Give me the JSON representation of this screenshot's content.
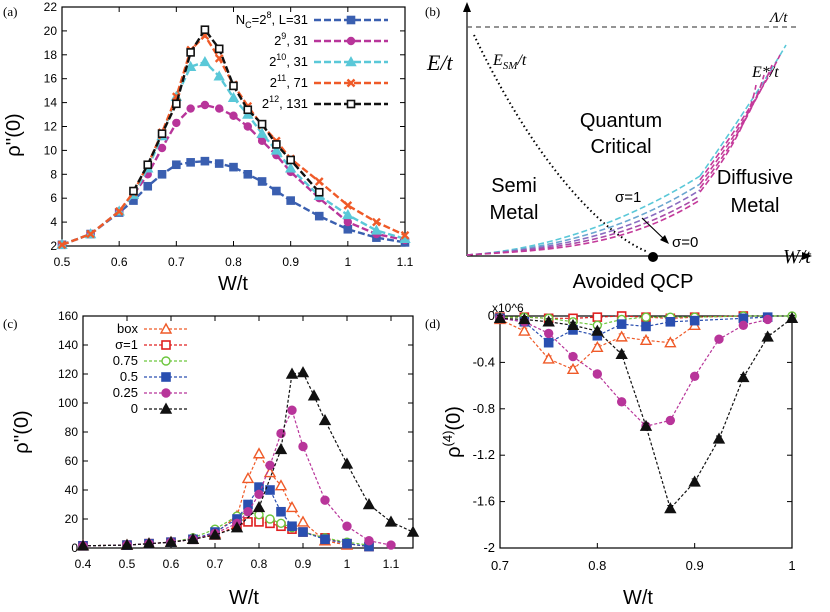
{
  "chart_data": [
    {
      "panel": "(a)",
      "type": "line",
      "xlabel": "W/t",
      "ylabel": "ρ''(0)",
      "xlim": [
        0.5,
        1.1
      ],
      "ylim": [
        2,
        22
      ],
      "xticks": [
        "0.5",
        "0.6",
        "0.7",
        "0.8",
        "0.9",
        "1",
        "1.1"
      ],
      "yticks": [
        "2",
        "4",
        "6",
        "8",
        "10",
        "12",
        "14",
        "16",
        "18",
        "20",
        "22"
      ],
      "legend_position": "top-right",
      "series": [
        {
          "name": "N_C=2^8, L=31",
          "label_main": "N",
          "label_sub": "C",
          "label_mid": "=2",
          "label_sup": "8",
          "label_tail": ", L=31",
          "color": "#3a5fb0",
          "marker": "square",
          "x": [
            0.5,
            0.55,
            0.6,
            0.625,
            0.65,
            0.675,
            0.7,
            0.725,
            0.75,
            0.775,
            0.8,
            0.825,
            0.85,
            0.875,
            0.9,
            0.95,
            1.0,
            1.05,
            1.1
          ],
          "y": [
            2.1,
            3.0,
            4.8,
            5.8,
            7.0,
            8.0,
            8.8,
            9.0,
            9.1,
            8.9,
            8.6,
            8.0,
            7.4,
            6.6,
            5.8,
            4.5,
            3.4,
            2.7,
            2.3
          ]
        },
        {
          "name": "2^9, 31",
          "label_main": "2",
          "label_sup": "9",
          "label_tail": ", 31",
          "color": "#b8359a",
          "marker": "circle",
          "x": [
            0.5,
            0.55,
            0.6,
            0.625,
            0.65,
            0.675,
            0.7,
            0.725,
            0.75,
            0.775,
            0.8,
            0.825,
            0.85,
            0.875,
            0.9,
            0.95,
            1.0,
            1.05,
            1.1
          ],
          "y": [
            2.1,
            3.0,
            4.9,
            6.3,
            8.0,
            10.2,
            12.3,
            13.5,
            13.8,
            13.5,
            12.9,
            12.0,
            10.8,
            9.6,
            8.2,
            6.0,
            4.0,
            3.0,
            2.5
          ]
        },
        {
          "name": "2^10, 31",
          "label_main": "2",
          "label_sup": "10",
          "label_tail": ", 31",
          "color": "#5ac8d8",
          "marker": "triangle",
          "x": [
            0.5,
            0.55,
            0.6,
            0.625,
            0.65,
            0.675,
            0.7,
            0.725,
            0.75,
            0.775,
            0.8,
            0.825,
            0.85,
            0.875,
            0.9,
            0.95,
            1.0,
            1.05,
            1.1
          ],
          "y": [
            2.1,
            3.0,
            4.9,
            6.3,
            8.5,
            11.2,
            14.5,
            17.0,
            17.4,
            16.2,
            14.4,
            13.0,
            11.4,
            10.0,
            8.5,
            6.2,
            4.6,
            3.3,
            2.6
          ]
        },
        {
          "name": "2^11, 71",
          "label_main": "2",
          "label_sup": "11",
          "label_tail": ", 71",
          "color": "#ef5a28",
          "marker": "x",
          "x": [
            0.5,
            0.55,
            0.6,
            0.625,
            0.65,
            0.675,
            0.7,
            0.725,
            0.75,
            0.775,
            0.8,
            0.825,
            0.85,
            0.875,
            0.9,
            0.95,
            1.0,
            1.05,
            1.1
          ],
          "y": [
            2.1,
            3.0,
            4.9,
            6.5,
            8.8,
            11.5,
            14.5,
            18.4,
            19.6,
            17.7,
            15.5,
            13.7,
            12.1,
            10.8,
            9.3,
            7.4,
            5.4,
            4.0,
            2.9
          ]
        },
        {
          "name": "2^12, 131",
          "label_main": "2",
          "label_sup": "12",
          "label_tail": ", 131",
          "color": "#111111",
          "marker": "square-open",
          "x": [
            0.625,
            0.65,
            0.675,
            0.7,
            0.725,
            0.75,
            0.775,
            0.8,
            0.825,
            0.85,
            0.875,
            0.9,
            0.95
          ],
          "y": [
            6.6,
            8.8,
            11.4,
            13.9,
            18.2,
            20.1,
            18.5,
            15.4,
            13.4,
            12.2,
            10.5,
            9.2,
            6.5
          ]
        }
      ]
    },
    {
      "panel": "(b)",
      "type": "diagram",
      "xlabel": "W/t",
      "ylabel": "E/t",
      "annotations": [
        "Λ/t",
        "E_SM/t",
        "E*/t",
        "Quantum",
        "Critical",
        "Semi",
        "Metal",
        "Diffusive",
        "Metal",
        "σ=1",
        "σ=0",
        "Avoided QCP"
      ],
      "labels": {
        "lambda": "Λ/t",
        "esm_main": "E",
        "esm_sub": "SM",
        "esm_tail": "/t",
        "estar": "E*/t",
        "quantum": "Quantum",
        "critical": "Critical",
        "semi": "Semi",
        "metal": "Metal",
        "diffusive": "Diffusive",
        "metal2": "Metal",
        "sigma1": "σ=1",
        "sigma0": "σ=0",
        "qcp": "Avoided QCP"
      },
      "sigma_values": [
        1,
        0.75,
        0.5,
        0.25,
        0
      ],
      "sigma_colors": [
        "#5ac8d8",
        "#6aa6d0",
        "#8a6cc0",
        "#a84aa8",
        "#c43a9a"
      ]
    },
    {
      "panel": "(c)",
      "type": "line",
      "xlabel": "W/t",
      "ylabel": "ρ''(0)",
      "xlim": [
        0.4,
        1.15
      ],
      "ylim": [
        0,
        160
      ],
      "xticks": [
        "0.4",
        "0.5",
        "0.6",
        "0.7",
        "0.8",
        "0.9",
        "1",
        "1.1"
      ],
      "yticks": [
        "0",
        "20",
        "40",
        "60",
        "80",
        "100",
        "120",
        "140",
        "160"
      ],
      "legend_position": "top-left",
      "series": [
        {
          "name": "box",
          "color": "#ef5a28",
          "marker": "triangle-open",
          "x": [
            0.4,
            0.5,
            0.55,
            0.6,
            0.65,
            0.7,
            0.75,
            0.775,
            0.8,
            0.825,
            0.85,
            0.875,
            0.9,
            0.95,
            1.0
          ],
          "y": [
            1.5,
            2,
            3,
            4,
            6,
            10,
            22,
            48,
            65,
            52,
            43,
            28,
            18,
            5,
            2
          ]
        },
        {
          "name": "σ=1",
          "color": "#e02020",
          "marker": "square-open",
          "x": [
            0.4,
            0.5,
            0.55,
            0.6,
            0.65,
            0.7,
            0.75,
            0.775,
            0.8,
            0.825,
            0.85,
            0.875,
            0.9,
            0.95,
            1.0,
            1.05
          ],
          "y": [
            1.5,
            2,
            3,
            4,
            6,
            9,
            15,
            18,
            18,
            17,
            15,
            13,
            11,
            7,
            3,
            1
          ]
        },
        {
          "name": "0.75",
          "color": "#6cc63c",
          "marker": "circle-open",
          "x": [
            0.4,
            0.5,
            0.55,
            0.6,
            0.65,
            0.7,
            0.75,
            0.775,
            0.8,
            0.825,
            0.85,
            0.875,
            0.9,
            0.95,
            1.0,
            1.05
          ],
          "y": [
            1.5,
            2,
            3,
            4,
            7,
            13,
            22,
            25,
            23,
            20,
            17,
            14,
            11,
            7,
            4,
            2
          ]
        },
        {
          "name": "0.5",
          "color": "#2a4fb0",
          "marker": "square",
          "x": [
            0.4,
            0.5,
            0.55,
            0.6,
            0.65,
            0.7,
            0.75,
            0.775,
            0.8,
            0.825,
            0.85,
            0.875,
            0.9,
            0.95,
            1.0,
            1.05
          ],
          "y": [
            1.5,
            2,
            3,
            4,
            6,
            11,
            20,
            30,
            42,
            40,
            25,
            15,
            11,
            6,
            3,
            1
          ]
        },
        {
          "name": "0.25",
          "color": "#b8359a",
          "marker": "circle",
          "x": [
            0.4,
            0.5,
            0.55,
            0.6,
            0.65,
            0.7,
            0.75,
            0.775,
            0.8,
            0.825,
            0.85,
            0.875,
            0.9,
            0.95,
            1.0,
            1.05,
            1.1
          ],
          "y": [
            1.5,
            2,
            3,
            4,
            6,
            10,
            17,
            25,
            37,
            57,
            79,
            95,
            70,
            33,
            15,
            5,
            2
          ]
        },
        {
          "name": "0",
          "color": "#111111",
          "marker": "triangle",
          "x": [
            0.4,
            0.5,
            0.55,
            0.6,
            0.65,
            0.7,
            0.75,
            0.8,
            0.85,
            0.875,
            0.9,
            0.925,
            0.95,
            1.0,
            1.05,
            1.1,
            1.15
          ],
          "y": [
            1.5,
            2,
            3,
            4,
            6,
            9,
            14,
            28,
            68,
            120,
            121,
            105,
            88,
            58,
            30,
            18,
            11
          ]
        }
      ]
    },
    {
      "panel": "(d)",
      "type": "line",
      "xlabel": "W/t",
      "ylabel": "ρ^(4)(0)",
      "y_multiplier": "x10^6",
      "xlim": [
        0.7,
        1.0
      ],
      "ylim": [
        -2.0,
        0.0
      ],
      "xticks": [
        "0.7",
        "0.8",
        "0.9",
        "1"
      ],
      "yticks": [
        "0",
        "-0.4",
        "-0.8",
        "-1.2",
        "-1.6",
        "-2"
      ],
      "series": [
        {
          "name": "box",
          "color": "#ef5a28",
          "marker": "triangle-open",
          "x": [
            0.7,
            0.725,
            0.75,
            0.775,
            0.8,
            0.825,
            0.85,
            0.875,
            0.9
          ],
          "y": [
            -0.03,
            -0.13,
            -0.37,
            -0.46,
            -0.27,
            -0.18,
            -0.21,
            -0.23,
            -0.08
          ]
        },
        {
          "name": "σ=1",
          "color": "#e02020",
          "marker": "square-open",
          "x": [
            0.7,
            0.725,
            0.75,
            0.775,
            0.8,
            0.825,
            0.85,
            0.875,
            0.9,
            0.95
          ],
          "y": [
            -0.01,
            -0.01,
            -0.02,
            -0.02,
            -0.01,
            0.0,
            -0.01,
            -0.02,
            -0.01,
            0.0
          ]
        },
        {
          "name": "0.75",
          "color": "#6cc63c",
          "marker": "circle-open",
          "x": [
            0.7,
            0.725,
            0.75,
            0.775,
            0.8,
            0.825,
            0.85,
            0.875,
            0.9,
            0.95,
            1.0
          ],
          "y": [
            -0.01,
            -0.01,
            -0.02,
            -0.05,
            -0.08,
            -0.03,
            -0.01,
            -0.01,
            -0.01,
            0.0,
            0.0
          ]
        },
        {
          "name": "0.5",
          "color": "#2a4fb0",
          "marker": "square",
          "x": [
            0.7,
            0.725,
            0.75,
            0.775,
            0.8,
            0.825,
            0.85,
            0.875,
            0.9,
            0.95,
            0.975
          ],
          "y": [
            -0.02,
            -0.05,
            -0.23,
            -0.12,
            -0.17,
            -0.07,
            -0.09,
            -0.05,
            -0.04,
            -0.02,
            -0.01
          ]
        },
        {
          "name": "0.25",
          "color": "#b8359a",
          "marker": "circle",
          "x": [
            0.7,
            0.725,
            0.75,
            0.775,
            0.8,
            0.825,
            0.85,
            0.875,
            0.9,
            0.925,
            0.95,
            0.975
          ],
          "y": [
            -0.02,
            -0.05,
            -0.15,
            -0.35,
            -0.5,
            -0.74,
            -0.95,
            -0.9,
            -0.52,
            -0.2,
            -0.08,
            -0.03
          ]
        },
        {
          "name": "0",
          "color": "#111111",
          "marker": "triangle",
          "x": [
            0.7,
            0.725,
            0.75,
            0.775,
            0.8,
            0.825,
            0.85,
            0.875,
            0.9,
            0.925,
            0.95,
            0.975,
            1.0
          ],
          "y": [
            -0.02,
            -0.03,
            -0.05,
            -0.08,
            -0.13,
            -0.33,
            -0.95,
            -1.66,
            -1.43,
            -1.06,
            -0.53,
            -0.18,
            -0.02
          ]
        }
      ]
    }
  ]
}
